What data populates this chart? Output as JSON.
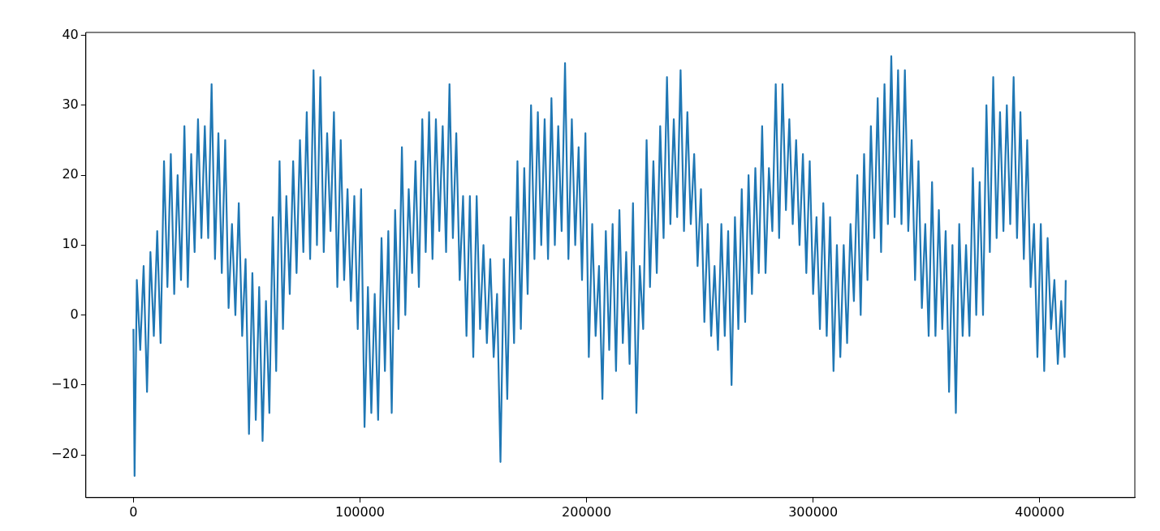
{
  "chart_data": {
    "type": "line",
    "marker": "none",
    "line_style": "solid",
    "grid": false,
    "legend": false,
    "color": "#1f77b4",
    "xlim": [
      -21000,
      442000
    ],
    "ylim": [
      -26.1,
      40.4
    ],
    "xticks": [
      0,
      100000,
      200000,
      300000,
      400000
    ],
    "yticks": [
      {
        "value": -20,
        "label": "−20"
      },
      {
        "value": -10,
        "label": "−10"
      },
      0,
      10,
      20,
      30,
      40
    ],
    "x": [
      0,
      500,
      1500,
      3000,
      4500,
      6000,
      7500,
      9000,
      10500,
      12000,
      13500,
      15000,
      16500,
      18000,
      19500,
      21000,
      22500,
      24000,
      25500,
      27000,
      28500,
      30000,
      31500,
      33000,
      34500,
      36000,
      37500,
      39000,
      40500,
      42000,
      43500,
      45000,
      46500,
      48000,
      49500,
      51000,
      52500,
      54000,
      55500,
      57000,
      58500,
      60000,
      61500,
      63000,
      64500,
      66000,
      67500,
      69000,
      70500,
      72000,
      73500,
      75000,
      76500,
      78000,
      79500,
      81000,
      82500,
      84000,
      85500,
      87000,
      88500,
      90000,
      91500,
      93000,
      94500,
      96000,
      97500,
      99000,
      100500,
      102000,
      103500,
      105000,
      106500,
      108000,
      109500,
      111000,
      112500,
      114000,
      115500,
      117000,
      118500,
      120000,
      121500,
      123000,
      124500,
      126000,
      127500,
      129000,
      130500,
      132000,
      133500,
      135000,
      136500,
      138000,
      139500,
      141000,
      142500,
      144000,
      145500,
      147000,
      148500,
      150000,
      151500,
      153000,
      154500,
      156000,
      157500,
      159000,
      160500,
      162000,
      163500,
      165000,
      166500,
      168000,
      169500,
      171000,
      172500,
      174000,
      175500,
      177000,
      178500,
      180000,
      181500,
      183000,
      184500,
      186000,
      187500,
      189000,
      190500,
      192000,
      193500,
      195000,
      196500,
      198000,
      199500,
      201000,
      202500,
      204000,
      205500,
      207000,
      208500,
      210000,
      211500,
      213000,
      214500,
      216000,
      217500,
      219000,
      220500,
      222000,
      223500,
      225000,
      226500,
      228000,
      229500,
      231000,
      232500,
      234000,
      235500,
      237000,
      238500,
      240000,
      241500,
      243000,
      244500,
      246000,
      247500,
      249000,
      250500,
      252000,
      253500,
      255000,
      256500,
      258000,
      259500,
      261000,
      262500,
      264000,
      265500,
      267000,
      268500,
      270000,
      271500,
      273000,
      274500,
      276000,
      277500,
      279000,
      280500,
      282000,
      283500,
      285000,
      286500,
      288000,
      289500,
      291000,
      292500,
      294000,
      295500,
      297000,
      298500,
      300000,
      301500,
      303000,
      304500,
      306000,
      307500,
      309000,
      310500,
      312000,
      313500,
      315000,
      316500,
      318000,
      319500,
      321000,
      322500,
      324000,
      325500,
      327000,
      328500,
      330000,
      331500,
      333000,
      334500,
      336000,
      337500,
      339000,
      340500,
      342000,
      343500,
      345000,
      346500,
      348000,
      349500,
      351000,
      352500,
      354000,
      355500,
      357000,
      358500,
      360000,
      361500,
      363000,
      364500,
      366000,
      367500,
      369000,
      370500,
      372000,
      373500,
      375000,
      376500,
      378000,
      379500,
      381000,
      382500,
      384000,
      385500,
      387000,
      388500,
      390000,
      391500,
      393000,
      394500,
      396000,
      397500,
      399000,
      400500,
      402000,
      403500,
      405000,
      406500,
      408000,
      409500,
      411000,
      411500
    ],
    "values": [
      -2,
      -23,
      5,
      -5,
      7,
      -11,
      9,
      -3,
      12,
      -4,
      22,
      4,
      23,
      3,
      20,
      5,
      27,
      4,
      23,
      9,
      28,
      11,
      27,
      11,
      33,
      8,
      26,
      6,
      25,
      1,
      13,
      0,
      16,
      -3,
      8,
      -17,
      6,
      -15,
      4,
      -18,
      2,
      -14,
      14,
      -8,
      22,
      -2,
      17,
      3,
      22,
      6,
      25,
      9,
      29,
      8,
      35,
      10,
      34,
      9,
      26,
      12,
      29,
      4,
      25,
      5,
      18,
      2,
      17,
      -2,
      18,
      -16,
      4,
      -14,
      3,
      -15,
      11,
      -8,
      12,
      -14,
      15,
      -2,
      24,
      0,
      18,
      6,
      22,
      4,
      28,
      9,
      29,
      8,
      28,
      12,
      27,
      9,
      33,
      11,
      26,
      5,
      17,
      -3,
      17,
      -6,
      17,
      -2,
      10,
      -4,
      8,
      -6,
      3,
      -21,
      8,
      -12,
      14,
      -4,
      22,
      -2,
      21,
      3,
      30,
      8,
      29,
      10,
      28,
      8,
      31,
      10,
      27,
      12,
      36,
      8,
      28,
      10,
      24,
      5,
      26,
      -6,
      13,
      -3,
      7,
      -12,
      12,
      -5,
      13,
      -8,
      15,
      -4,
      9,
      -7,
      16,
      -14,
      7,
      -2,
      25,
      4,
      22,
      6,
      27,
      11,
      34,
      13,
      28,
      14,
      35,
      12,
      29,
      13,
      23,
      7,
      18,
      -1,
      13,
      -3,
      7,
      -5,
      13,
      -3,
      12,
      -10,
      14,
      -2,
      18,
      -1,
      20,
      3,
      21,
      6,
      27,
      6,
      21,
      12,
      33,
      11,
      33,
      15,
      28,
      13,
      25,
      10,
      23,
      6,
      22,
      3,
      14,
      -2,
      16,
      -3,
      14,
      -8,
      10,
      -6,
      10,
      -4,
      13,
      2,
      20,
      0,
      23,
      5,
      27,
      11,
      31,
      9,
      33,
      13,
      37,
      14,
      35,
      13,
      35,
      12,
      25,
      5,
      22,
      1,
      13,
      -3,
      19,
      -3,
      15,
      -2,
      12,
      -11,
      10,
      -14,
      13,
      -3,
      10,
      -3,
      21,
      0,
      19,
      0,
      30,
      9,
      34,
      11,
      29,
      12,
      30,
      13,
      34,
      11,
      29,
      8,
      25,
      4,
      13,
      -6,
      13,
      -8,
      11,
      -2,
      5,
      -7,
      2,
      -6,
      5
    ]
  }
}
